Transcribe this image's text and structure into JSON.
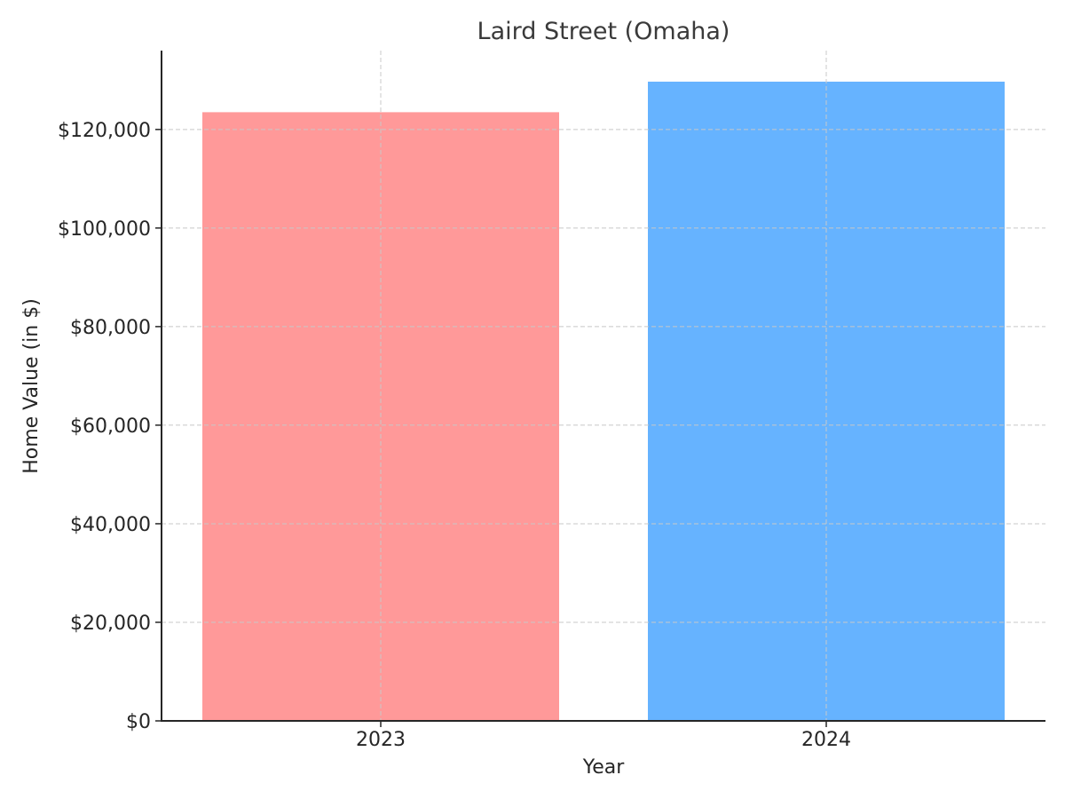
{
  "chart_data": {
    "type": "bar",
    "title": "Laird Street (Omaha)",
    "xlabel": "Year",
    "ylabel": "Home Value (in $)",
    "categories": [
      "2023",
      "2024"
    ],
    "values": [
      123500,
      129700
    ],
    "colors": [
      "#ff9999",
      "#66b3ff"
    ],
    "ylim": [
      0,
      136000
    ],
    "yticks": [
      0,
      20000,
      40000,
      60000,
      80000,
      100000,
      120000
    ],
    "ytick_labels": [
      "$0",
      "$20,000",
      "$40,000",
      "$60,000",
      "$80,000",
      "$100,000",
      "$120,000"
    ],
    "grid": true
  }
}
